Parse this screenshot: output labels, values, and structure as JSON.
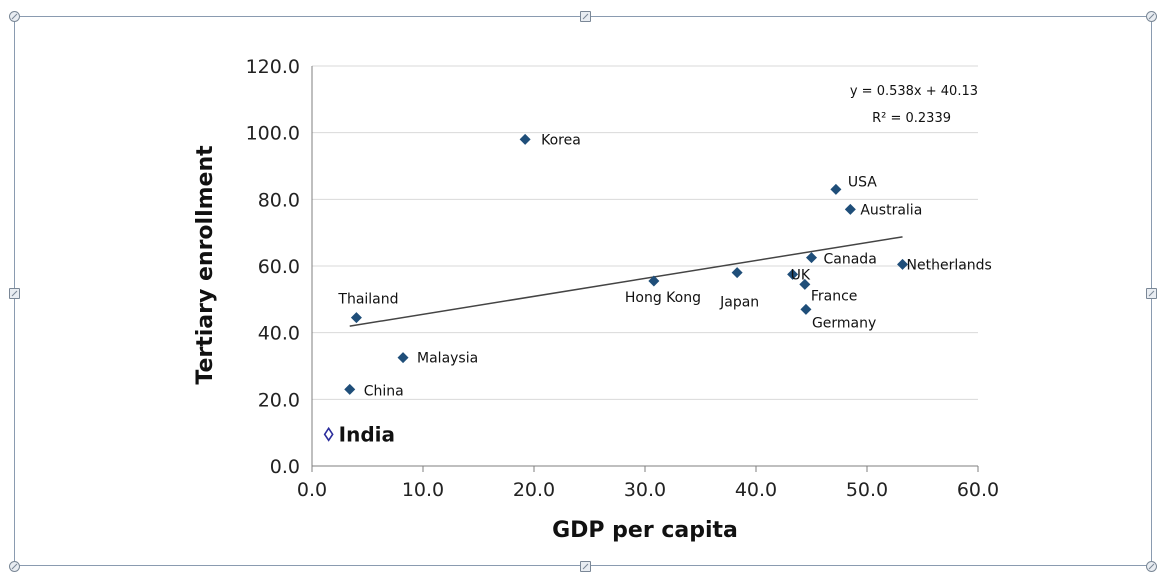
{
  "colors": {
    "marker": "#1f4e79",
    "highlight_marker": "#2b2d9c",
    "gridline": "#d9d9d9",
    "trendline": "#444444",
    "axis": "#7f7f7f"
  },
  "chart_data": {
    "type": "scatter",
    "title": "",
    "xlabel": "GDP per capita",
    "ylabel": "Tertiary enrollment",
    "xlim": [
      0,
      60
    ],
    "ylim": [
      0,
      120
    ],
    "xticks": [
      "0.0",
      "10.0",
      "20.0",
      "30.0",
      "40.0",
      "50.0",
      "60.0"
    ],
    "yticks": [
      "0.0",
      "20.0",
      "40.0",
      "60.0",
      "80.0",
      "100.0",
      "120.0"
    ],
    "grid": "horizontal",
    "points": [
      {
        "label": "Korea",
        "x": 19.2,
        "y": 98.0
      },
      {
        "label": "USA",
        "x": 47.2,
        "y": 83.0
      },
      {
        "label": "Australia",
        "x": 48.5,
        "y": 77.0
      },
      {
        "label": "Canada",
        "x": 45.0,
        "y": 62.5
      },
      {
        "label": "Netherlands",
        "x": 53.2,
        "y": 60.5
      },
      {
        "label": "UK",
        "x": 43.3,
        "y": 57.5
      },
      {
        "label": "Japan",
        "x": 38.3,
        "y": 58.0
      },
      {
        "label": "Hong Kong",
        "x": 30.8,
        "y": 55.5
      },
      {
        "label": "France",
        "x": 44.4,
        "y": 54.5
      },
      {
        "label": "Germany",
        "x": 44.5,
        "y": 47.0
      },
      {
        "label": "Thailand",
        "x": 4.0,
        "y": 44.5
      },
      {
        "label": "Malaysia",
        "x": 8.2,
        "y": 32.5
      },
      {
        "label": "China",
        "x": 3.4,
        "y": 23.0
      }
    ],
    "highlight_point": {
      "label": "India",
      "x": 1.5,
      "y": 9.5,
      "marker": "hollow-diamond"
    },
    "trendline": {
      "type": "linear",
      "x_range": [
        3.4,
        53.2
      ],
      "equation": "y = 0.538x + 40.13",
      "r_squared": "R² = 0.2339"
    }
  }
}
